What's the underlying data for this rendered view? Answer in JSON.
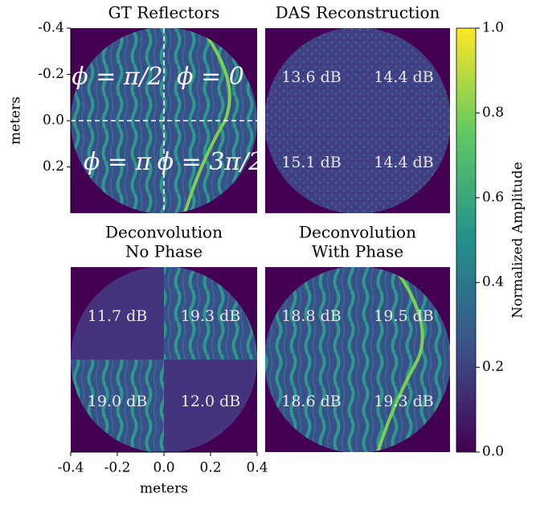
{
  "chart_data": [
    {
      "type": "image",
      "title": [
        "GT Reflectors"
      ],
      "ylabel": "meters",
      "ylim": [
        -0.4,
        0.4
      ],
      "yticks": [
        -0.4,
        -0.2,
        {
          "value": 0,
          "label": "0.0"
        },
        0.2
      ],
      "annotations": [
        "ϕ = π/2",
        "ϕ = 0",
        "ϕ = π",
        "ϕ = 3π/2"
      ]
    },
    {
      "type": "image",
      "title": [
        "DAS Reconstruction"
      ],
      "annotations": [
        "13.6 dB",
        "14.4 dB",
        "15.1 dB",
        "14.4 dB"
      ]
    },
    {
      "type": "image",
      "title": [
        "Deconvolution",
        "No Phase"
      ],
      "xlabel": "meters",
      "xlim": [
        -0.4,
        0.4
      ],
      "xticks": [
        -0.4,
        -0.2,
        {
          "value": 0,
          "label": "0.0"
        },
        0.2,
        0.4
      ],
      "annotations": [
        "11.7 dB",
        "19.3 dB",
        "19.0 dB",
        "12.0 dB"
      ]
    },
    {
      "type": "image",
      "title": [
        "Deconvolution",
        "With Phase"
      ],
      "annotations": [
        "18.8 dB",
        "19.5 dB",
        "18.6 dB",
        "19.3 dB"
      ]
    },
    {
      "type": "colorbar",
      "label": "Normalized Amplitude",
      "ylim": [
        0,
        1
      ],
      "yticks": [
        {
          "value": 0,
          "label": "0.0"
        },
        0.2,
        0.4,
        0.6,
        0.8,
        {
          "value": 1,
          "label": "1.0"
        }
      ]
    }
  ]
}
